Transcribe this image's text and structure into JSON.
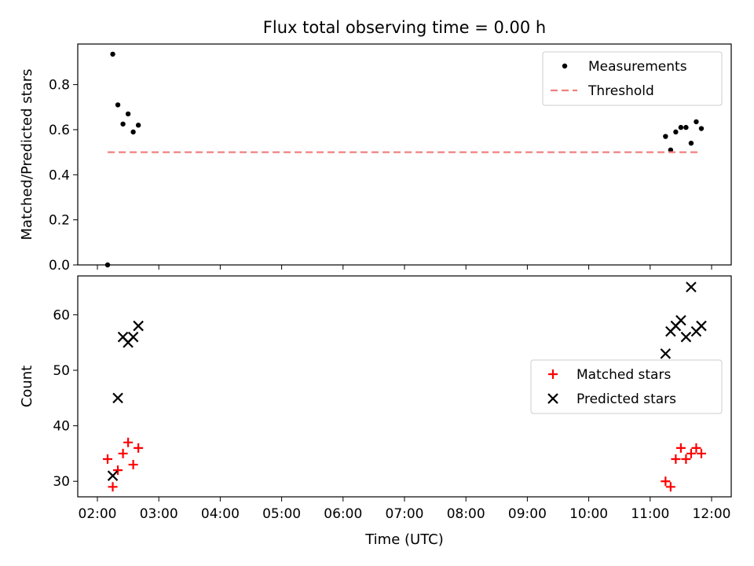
{
  "chart_data": [
    {
      "type": "scatter",
      "title": "Flux total observing time = 0.00 h",
      "xlabel": "",
      "ylabel": "Matched/Predicted stars",
      "x_unit": "time of day (UTC)",
      "xlim": [
        "02:00",
        "12:00"
      ],
      "ylim": [
        0,
        0.98
      ],
      "y_ticks": [
        0.0,
        0.2,
        0.4,
        0.6,
        0.8
      ],
      "y_tick_labels": [
        "0.0",
        "0.2",
        "0.4",
        "0.6",
        "0.8"
      ],
      "grid": false,
      "legend_position": "top-right",
      "series": [
        {
          "name": "Measurements",
          "marker": "dot",
          "color": "#000000",
          "points": [
            [
              "02:10",
              0.0
            ],
            [
              "02:15",
              0.935
            ],
            [
              "02:20",
              0.71
            ],
            [
              "02:25",
              0.625
            ],
            [
              "02:30",
              0.67
            ],
            [
              "02:35",
              0.59
            ],
            [
              "02:40",
              0.62
            ],
            [
              "11:15",
              0.57
            ],
            [
              "11:20",
              0.51
            ],
            [
              "11:25",
              0.59
            ],
            [
              "11:30",
              0.61
            ],
            [
              "11:35",
              0.61
            ],
            [
              "11:40",
              0.54
            ],
            [
              "11:45",
              0.635
            ],
            [
              "11:50",
              0.605
            ]
          ]
        },
        {
          "name": "Threshold",
          "marker": "dashed-line",
          "color": "#f08080",
          "points": [
            [
              "02:10",
              0.5
            ],
            [
              "11:50",
              0.5
            ]
          ]
        }
      ]
    },
    {
      "type": "scatter",
      "title": "",
      "xlabel": "Time (UTC)",
      "ylabel": "Count",
      "x_unit": "time of day (UTC)",
      "xlim": [
        "02:00",
        "12:00"
      ],
      "ylim": [
        27.2,
        67
      ],
      "y_ticks": [
        30,
        40,
        50,
        60
      ],
      "y_tick_labels": [
        "30",
        "40",
        "50",
        "60"
      ],
      "x_ticks": [
        "02:00",
        "03:00",
        "04:00",
        "05:00",
        "06:00",
        "07:00",
        "08:00",
        "09:00",
        "10:00",
        "11:00",
        "12:00"
      ],
      "x_tick_labels": [
        "02:00",
        "03:00",
        "04:00",
        "05:00",
        "06:00",
        "07:00",
        "08:00",
        "09:00",
        "10:00",
        "11:00",
        "12:00"
      ],
      "grid": false,
      "legend_position": "center-right",
      "series": [
        {
          "name": "Matched stars",
          "marker": "plus",
          "color": "#ff0000",
          "points": [
            [
              "02:10",
              34
            ],
            [
              "02:15",
              29
            ],
            [
              "02:20",
              32
            ],
            [
              "02:25",
              35
            ],
            [
              "02:30",
              37
            ],
            [
              "02:35",
              33
            ],
            [
              "02:40",
              36
            ],
            [
              "11:15",
              30
            ],
            [
              "11:20",
              29
            ],
            [
              "11:25",
              34
            ],
            [
              "11:30",
              36
            ],
            [
              "11:35",
              34
            ],
            [
              "11:40",
              35
            ],
            [
              "11:45",
              36
            ],
            [
              "11:50",
              35
            ]
          ]
        },
        {
          "name": "Predicted stars",
          "marker": "x",
          "color": "#000000",
          "points": [
            [
              "02:15",
              31
            ],
            [
              "02:20",
              45
            ],
            [
              "02:25",
              56
            ],
            [
              "02:30",
              55
            ],
            [
              "02:35",
              56
            ],
            [
              "02:40",
              58
            ],
            [
              "11:15",
              53
            ],
            [
              "11:20",
              57
            ],
            [
              "11:25",
              58
            ],
            [
              "11:30",
              59
            ],
            [
              "11:35",
              56
            ],
            [
              "11:40",
              65
            ],
            [
              "11:45",
              57
            ],
            [
              "11:50",
              58
            ]
          ]
        }
      ]
    }
  ]
}
